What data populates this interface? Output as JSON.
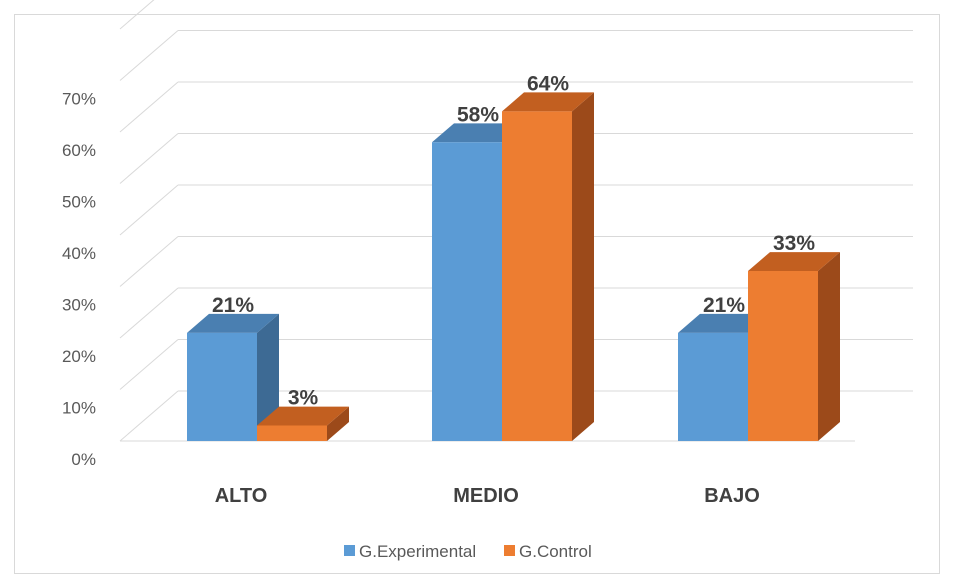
{
  "chart_data": {
    "type": "bar",
    "categories": [
      "ALTO",
      "MEDIO",
      "BAJO"
    ],
    "series": [
      {
        "name": "G.Experimental",
        "values": [
          21,
          58,
          21
        ],
        "labels": [
          "21%",
          "58%",
          "21%"
        ],
        "color": "#5b9bd5",
        "side_color": "#3d6a94",
        "top_color": "#4a7fb1"
      },
      {
        "name": "G.Control",
        "values": [
          3,
          64,
          33
        ],
        "labels": [
          "3%",
          "64%",
          "33%"
        ],
        "color": "#ed7d31",
        "side_color": "#9c4a1a",
        "top_color": "#c25f20"
      }
    ],
    "y_ticks": [
      "0%",
      "10%",
      "20%",
      "30%",
      "40%",
      "50%",
      "60%",
      "70%"
    ],
    "ylim": [
      0,
      70
    ],
    "grid": true,
    "legend_position": "bottom",
    "title": "",
    "xlabel": "",
    "ylabel": ""
  }
}
